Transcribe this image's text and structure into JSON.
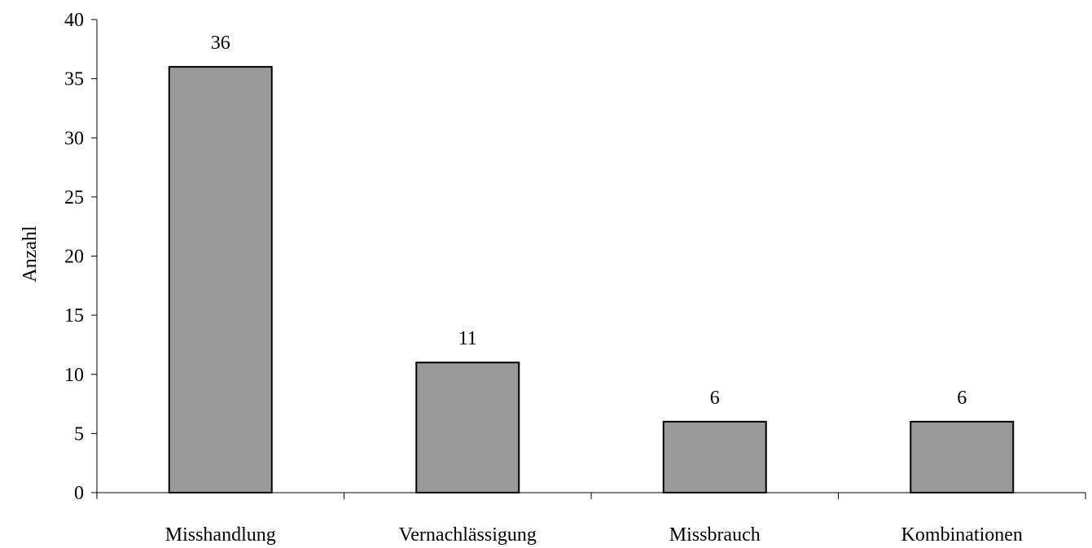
{
  "chart_data": {
    "type": "bar",
    "categories": [
      "Misshandlung",
      "Vernachlässigung",
      "Missbrauch",
      "Kombinationen"
    ],
    "values": [
      36,
      11,
      6,
      6
    ],
    "data_labels": [
      "36",
      "11",
      "6",
      "6"
    ],
    "title": "",
    "xlabel": "",
    "ylabel": "Anzahl",
    "ylim": [
      0,
      40
    ],
    "yticks": [
      0,
      5,
      10,
      15,
      20,
      25,
      30,
      35,
      40
    ],
    "grid": false,
    "legend": "none",
    "bar_color": "#999999",
    "bar_edge_color": "#000000"
  }
}
